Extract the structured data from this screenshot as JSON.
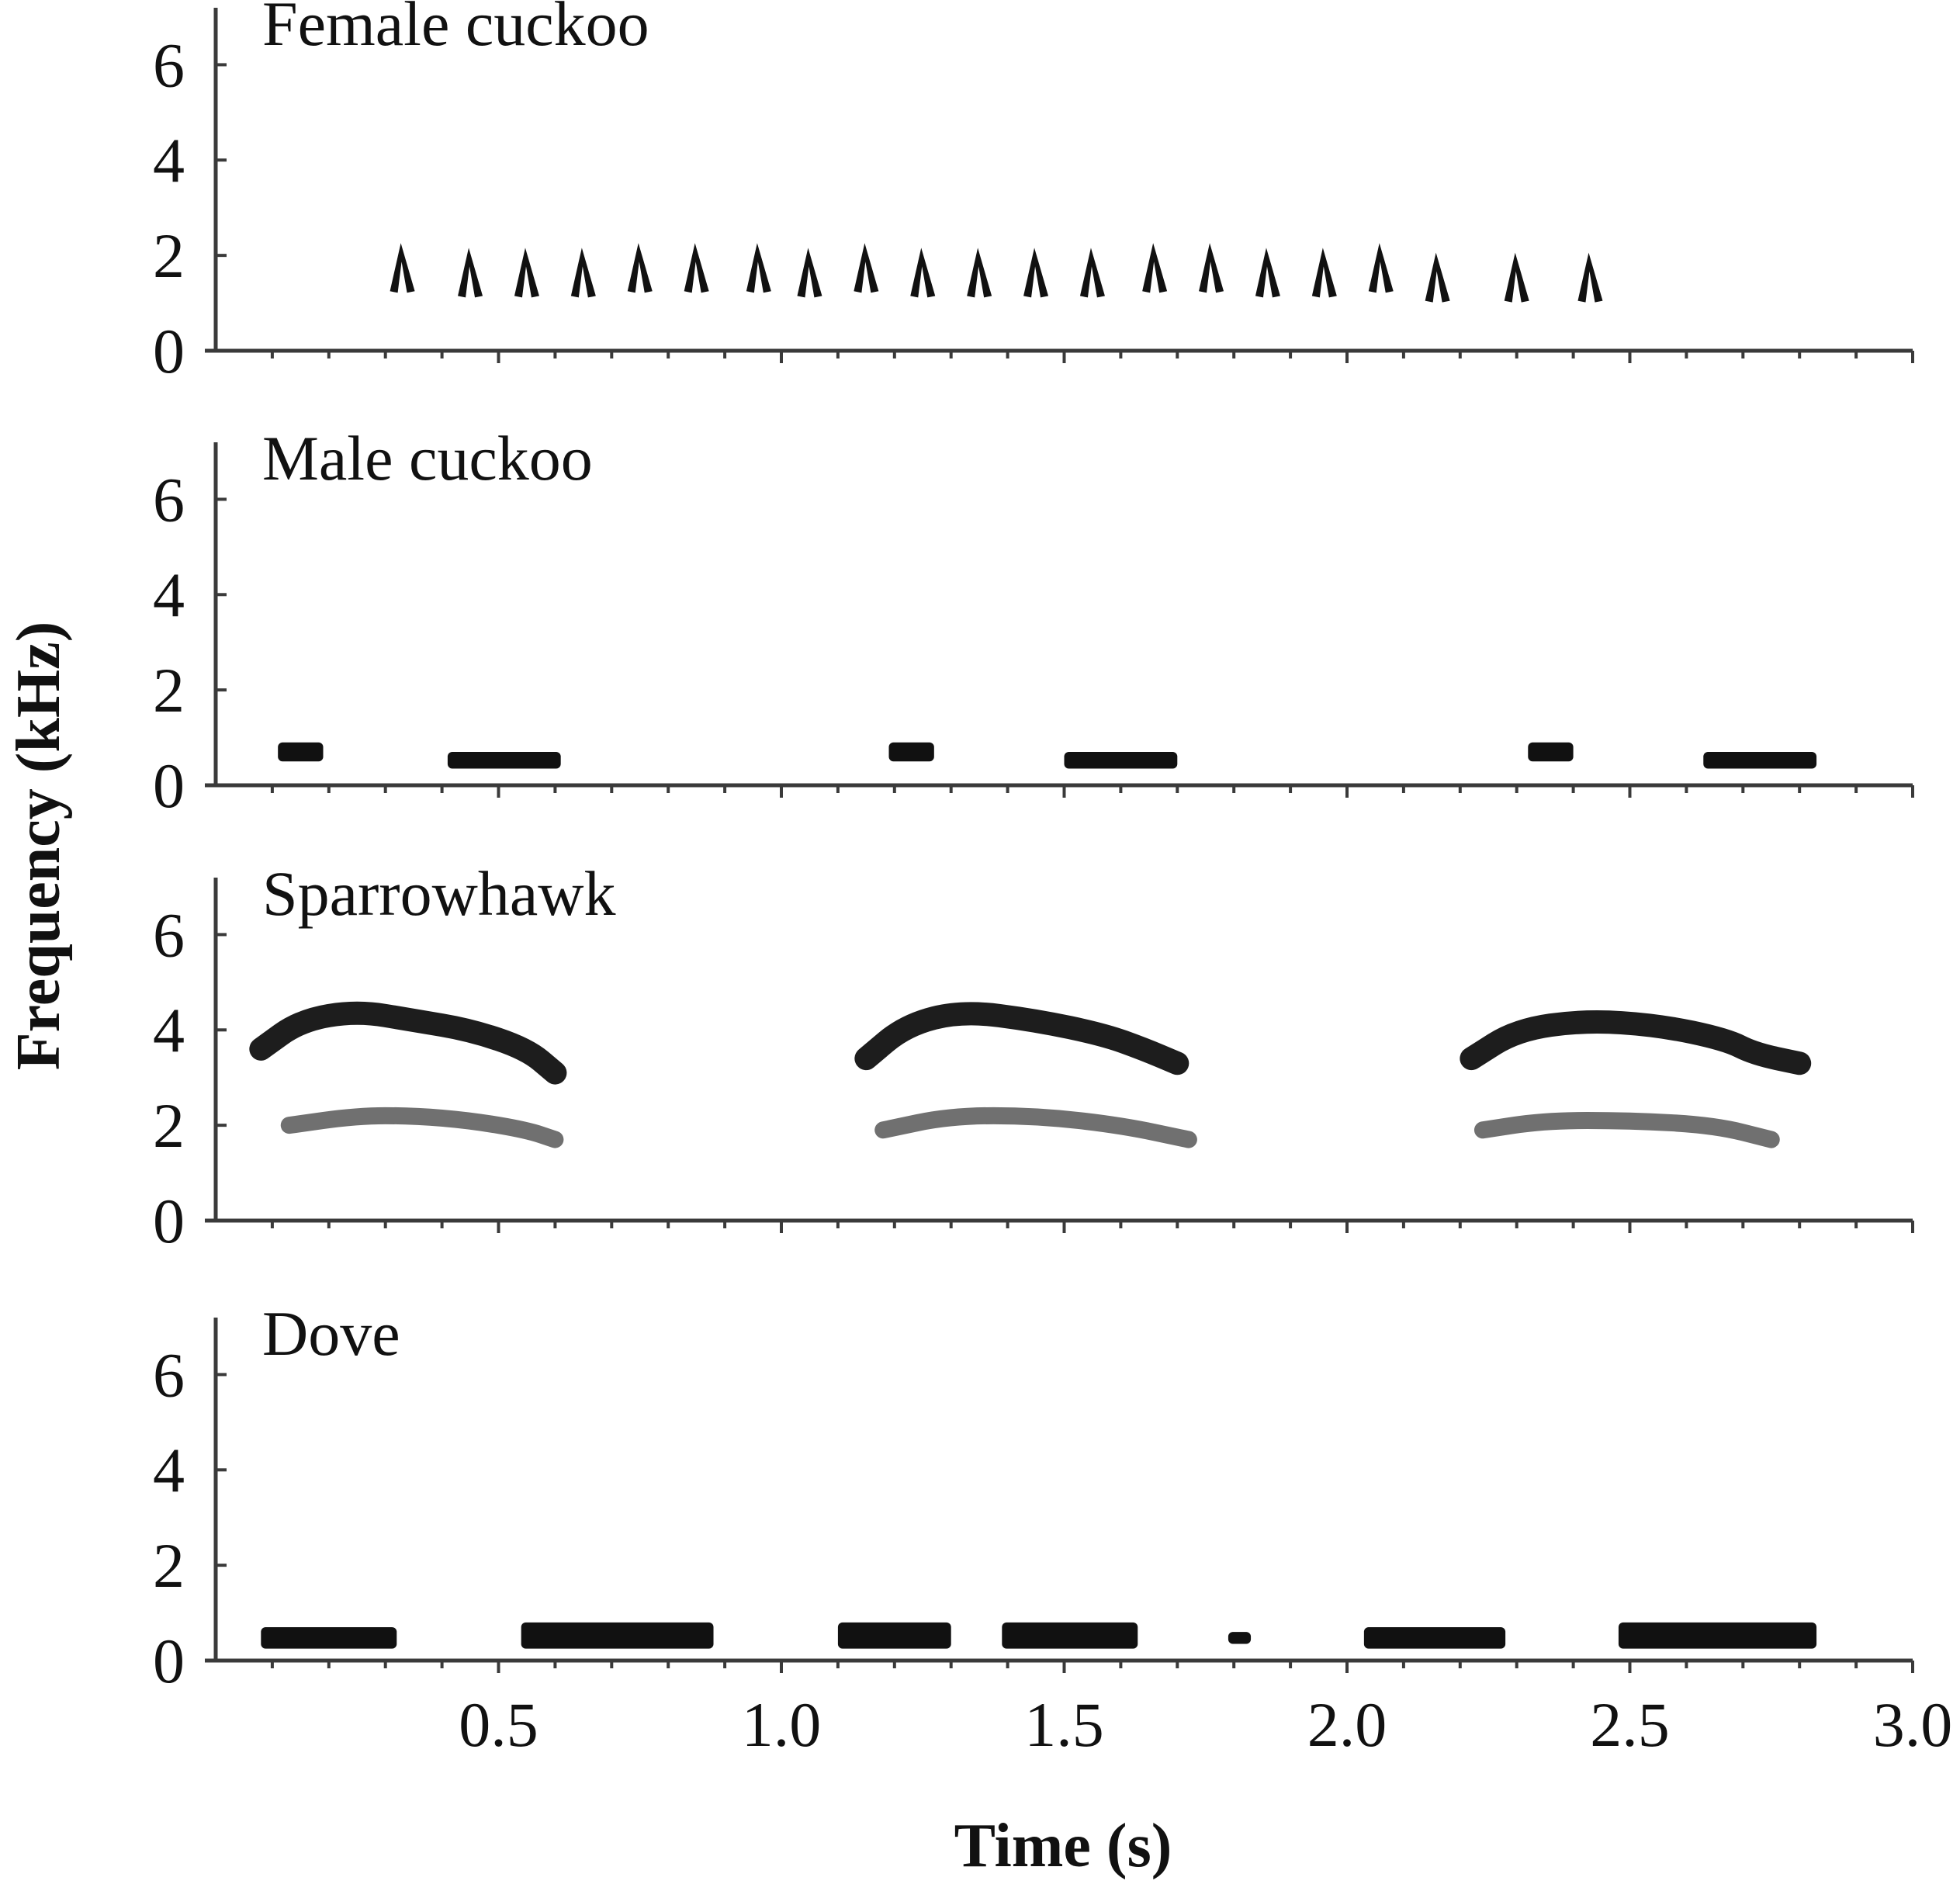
{
  "chart_data": {
    "type": "spectrogram",
    "xlabel": "Time (s)",
    "ylabel": "Frequency (kHz)",
    "xlim": [
      0,
      3.0
    ],
    "x_ticks": [
      "0.5",
      "1.0",
      "1.5",
      "2.0",
      "2.5",
      "3.0"
    ],
    "ylim": [
      0,
      7
    ],
    "y_ticks": [
      "0",
      "2",
      "4",
      "6"
    ],
    "grid": false,
    "ink_color": "#111111",
    "panels": [
      {
        "title": "Female cuckoo",
        "notes": [
          {
            "t": 0.33,
            "f": 1.9,
            "shape": "chevron"
          },
          {
            "t": 0.45,
            "f": 1.8,
            "shape": "chevron"
          },
          {
            "t": 0.55,
            "f": 1.8,
            "shape": "chevron"
          },
          {
            "t": 0.65,
            "f": 1.8,
            "shape": "chevron"
          },
          {
            "t": 0.75,
            "f": 1.9,
            "shape": "chevron"
          },
          {
            "t": 0.85,
            "f": 1.9,
            "shape": "chevron"
          },
          {
            "t": 0.96,
            "f": 1.9,
            "shape": "chevron"
          },
          {
            "t": 1.05,
            "f": 1.8,
            "shape": "chevron"
          },
          {
            "t": 1.15,
            "f": 1.9,
            "shape": "chevron"
          },
          {
            "t": 1.25,
            "f": 1.8,
            "shape": "chevron"
          },
          {
            "t": 1.35,
            "f": 1.8,
            "shape": "chevron"
          },
          {
            "t": 1.45,
            "f": 1.8,
            "shape": "chevron"
          },
          {
            "t": 1.55,
            "f": 1.8,
            "shape": "chevron"
          },
          {
            "t": 1.66,
            "f": 1.9,
            "shape": "chevron"
          },
          {
            "t": 1.76,
            "f": 1.9,
            "shape": "chevron"
          },
          {
            "t": 1.86,
            "f": 1.8,
            "shape": "chevron"
          },
          {
            "t": 1.96,
            "f": 1.8,
            "shape": "chevron"
          },
          {
            "t": 2.06,
            "f": 1.9,
            "shape": "chevron"
          },
          {
            "t": 2.16,
            "f": 1.7,
            "shape": "chevron"
          },
          {
            "t": 2.3,
            "f": 1.7,
            "shape": "chevron"
          },
          {
            "t": 2.43,
            "f": 1.7,
            "shape": "chevron"
          }
        ]
      },
      {
        "title": "Male cuckoo",
        "notes": [
          {
            "t_start": 0.11,
            "t_end": 0.19,
            "f_low": 0.5,
            "f_high": 0.9,
            "shape": "block"
          },
          {
            "t_start": 0.41,
            "t_end": 0.61,
            "f_low": 0.35,
            "f_high": 0.7,
            "shape": "block"
          },
          {
            "t_start": 1.19,
            "t_end": 1.27,
            "f_low": 0.5,
            "f_high": 0.9,
            "shape": "block"
          },
          {
            "t_start": 1.5,
            "t_end": 1.7,
            "f_low": 0.35,
            "f_high": 0.7,
            "shape": "block"
          },
          {
            "t_start": 2.32,
            "t_end": 2.4,
            "f_low": 0.5,
            "f_high": 0.9,
            "shape": "block"
          },
          {
            "t_start": 2.63,
            "t_end": 2.83,
            "f_low": 0.35,
            "f_high": 0.7,
            "shape": "block"
          }
        ]
      },
      {
        "title": "Sparrowhawk",
        "notes": [
          {
            "shape": "harmonic",
            "t": [
              0.08,
              0.15,
              0.25,
              0.35,
              0.45,
              0.55,
              0.6
            ],
            "f": [
              3.6,
              4.2,
              4.4,
              4.2,
              4.0,
              3.6,
              3.1
            ]
          },
          {
            "shape": "harmonic",
            "t": [
              0.13,
              0.25,
              0.35,
              0.45,
              0.55,
              0.6
            ],
            "f": [
              2.0,
              2.2,
              2.2,
              2.1,
              1.9,
              1.7
            ]
          },
          {
            "shape": "harmonic",
            "t": [
              1.15,
              1.22,
              1.32,
              1.45,
              1.57,
              1.64,
              1.7
            ],
            "f": [
              3.4,
              4.1,
              4.4,
              4.2,
              3.9,
              3.6,
              3.3
            ]
          },
          {
            "shape": "harmonic",
            "t": [
              1.18,
              1.3,
              1.45,
              1.6,
              1.72
            ],
            "f": [
              1.9,
              2.2,
              2.2,
              2.0,
              1.7
            ]
          },
          {
            "shape": "harmonic",
            "t": [
              2.22,
              2.3,
              2.42,
              2.55,
              2.67,
              2.72,
              2.8
            ],
            "f": [
              3.4,
              4.0,
              4.2,
              4.1,
              3.8,
              3.5,
              3.3
            ]
          },
          {
            "shape": "harmonic",
            "t": [
              2.24,
              2.35,
              2.5,
              2.65,
              2.75
            ],
            "f": [
              1.9,
              2.1,
              2.1,
              2.0,
              1.7
            ]
          }
        ]
      },
      {
        "title": "Dove",
        "notes": [
          {
            "t_start": 0.08,
            "t_end": 0.32,
            "f_low": 0.25,
            "f_high": 0.7,
            "shape": "block"
          },
          {
            "t_start": 0.54,
            "t_end": 0.88,
            "f_low": 0.25,
            "f_high": 0.8,
            "shape": "block"
          },
          {
            "t_start": 1.1,
            "t_end": 1.3,
            "f_low": 0.25,
            "f_high": 0.8,
            "shape": "block"
          },
          {
            "t_start": 1.39,
            "t_end": 1.63,
            "f_low": 0.25,
            "f_high": 0.8,
            "shape": "block"
          },
          {
            "t_start": 1.79,
            "t_end": 1.83,
            "f_low": 0.35,
            "f_high": 0.6,
            "shape": "block"
          },
          {
            "t_start": 2.03,
            "t_end": 2.28,
            "f_low": 0.25,
            "f_high": 0.7,
            "shape": "block"
          },
          {
            "t_start": 2.48,
            "t_end": 2.83,
            "f_low": 0.25,
            "f_high": 0.8,
            "shape": "block"
          }
        ]
      }
    ]
  }
}
